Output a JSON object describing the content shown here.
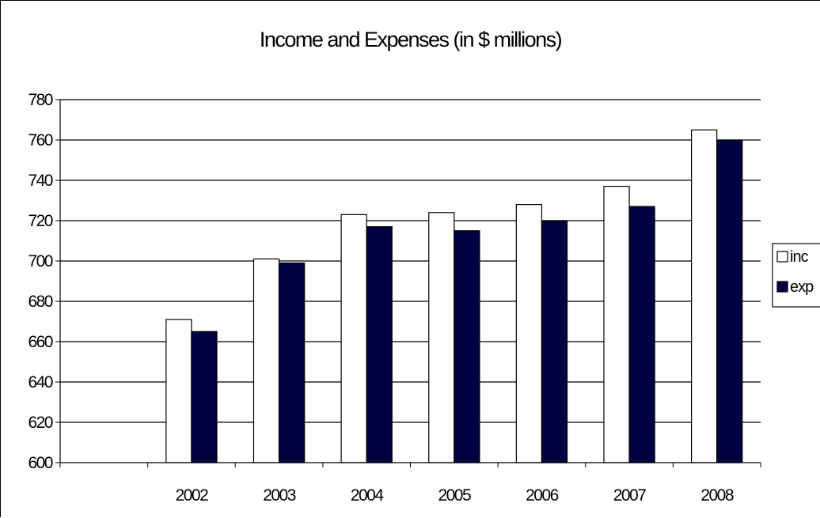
{
  "chart_data": {
    "type": "bar",
    "title": "Income and Expenses (in $ millions)",
    "xlabel": "",
    "ylabel": "",
    "categories": [
      "",
      "2002",
      "2003",
      "2004",
      "2005",
      "2006",
      "2007",
      "2008"
    ],
    "series": [
      {
        "name": "inc",
        "values": [
          null,
          671,
          701,
          723,
          724,
          728,
          737,
          765
        ],
        "color": "#ffffff"
      },
      {
        "name": "exp",
        "values": [
          null,
          665,
          699,
          717,
          715,
          720,
          727,
          760
        ],
        "color": "#000040"
      }
    ],
    "ylim": [
      600,
      780
    ],
    "yticks": [
      600,
      620,
      640,
      660,
      680,
      700,
      720,
      740,
      760,
      780
    ],
    "grid": true,
    "legend": "right"
  }
}
